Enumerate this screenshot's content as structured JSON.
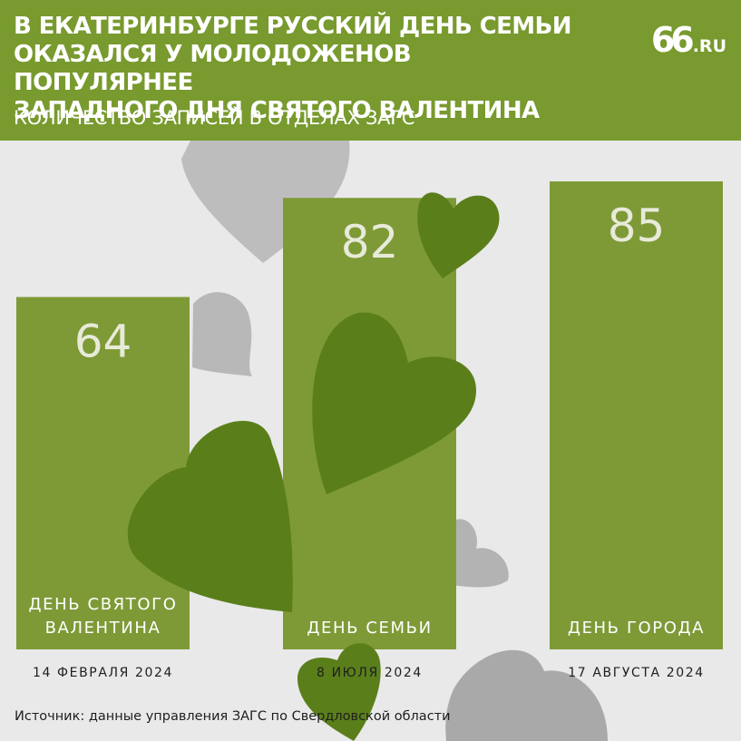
{
  "header": {
    "title": "В ЕКАТЕРИНБУРГЕ РУССКИЙ ДЕНЬ СЕМЬИ\nОКАЗАЛСЯ У МОЛОДОЖЕНОВ ПОПУЛЯРНЕЕ\nЗАПАДНОГО ДНЯ СВЯТОГО ВАЛЕНТИНА",
    "subtitle": "КОЛИЧЕСТВО ЗАПИСЕЙ В ОТДЕЛАХ ЗАГС",
    "logo_number": "66",
    "logo_domain": ".RU"
  },
  "source": "Источник: данные управления ЗАГС по Свердловской области",
  "colors": {
    "header_bg": "#789a2e",
    "bar": "#7e9a37",
    "heart_dark": "#5a7f1a",
    "heart_grey": "#b3b3b3",
    "background": "#e9e9e9"
  },
  "chart_data": {
    "type": "bar",
    "title": "КОЛИЧЕСТВО ЗАПИСЕЙ В ОТДЕЛАХ ЗАГС",
    "categories": [
      "ДЕНЬ СВЯТОГО\nВАЛЕНТИНА",
      "ДЕНЬ СЕМЬИ",
      "ДЕНЬ ГОРОДА"
    ],
    "dates": [
      "14 ФЕВРАЛЯ 2024",
      "8 ИЮЛЯ 2024",
      "17 АВГУСТА 2024"
    ],
    "values": [
      64,
      82,
      85
    ],
    "value_labels": [
      "64",
      "82",
      "85"
    ],
    "xlabel": "",
    "ylabel": "",
    "ylim": [
      0,
      85
    ],
    "grid": false,
    "legend": "none"
  }
}
